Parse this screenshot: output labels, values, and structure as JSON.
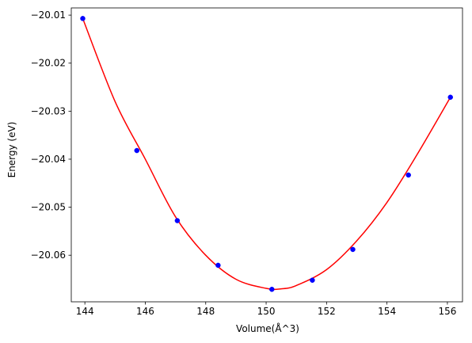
{
  "chart_data": {
    "type": "line",
    "title": "",
    "xlabel": "Volume(Å^3)",
    "ylabel": "Energy (eV)",
    "xlim": [
      143.55,
      156.5
    ],
    "ylim": [
      -20.0697,
      -20.0085
    ],
    "x_ticks": [
      144,
      146,
      148,
      150,
      152,
      154,
      156
    ],
    "x_tick_labels": [
      "144",
      "146",
      "148",
      "150",
      "152",
      "154",
      "156"
    ],
    "y_ticks": [
      -20.01,
      -20.02,
      -20.03,
      -20.04,
      -20.05,
      -20.06
    ],
    "y_tick_labels": [
      "−20.01",
      "−20.02",
      "−20.03",
      "−20.04",
      "−20.05",
      "−20.06"
    ],
    "grid": false,
    "series": [
      {
        "kind": "scatter",
        "color": "#0000ff",
        "x": [
          143.93,
          145.72,
          147.06,
          148.41,
          150.19,
          151.53,
          152.87,
          154.71,
          156.1
        ],
        "y": [
          -20.0107,
          -20.0382,
          -20.0528,
          -20.0621,
          -20.0671,
          -20.0652,
          -20.0588,
          -20.0433,
          -20.0271
        ]
      },
      {
        "kind": "fit-line",
        "color": "#ff0000",
        "x": [
          143.93,
          145.0,
          146.0,
          147.0,
          148.0,
          149.0,
          150.0,
          150.5,
          151.0,
          152.0,
          153.0,
          154.0,
          155.0,
          156.1
        ],
        "y": [
          -20.0107,
          -20.028,
          -20.04,
          -20.052,
          -20.06,
          -20.065,
          -20.0669,
          -20.067,
          -20.0663,
          -20.063,
          -20.057,
          -20.049,
          -20.039,
          -20.0271
        ]
      }
    ]
  }
}
